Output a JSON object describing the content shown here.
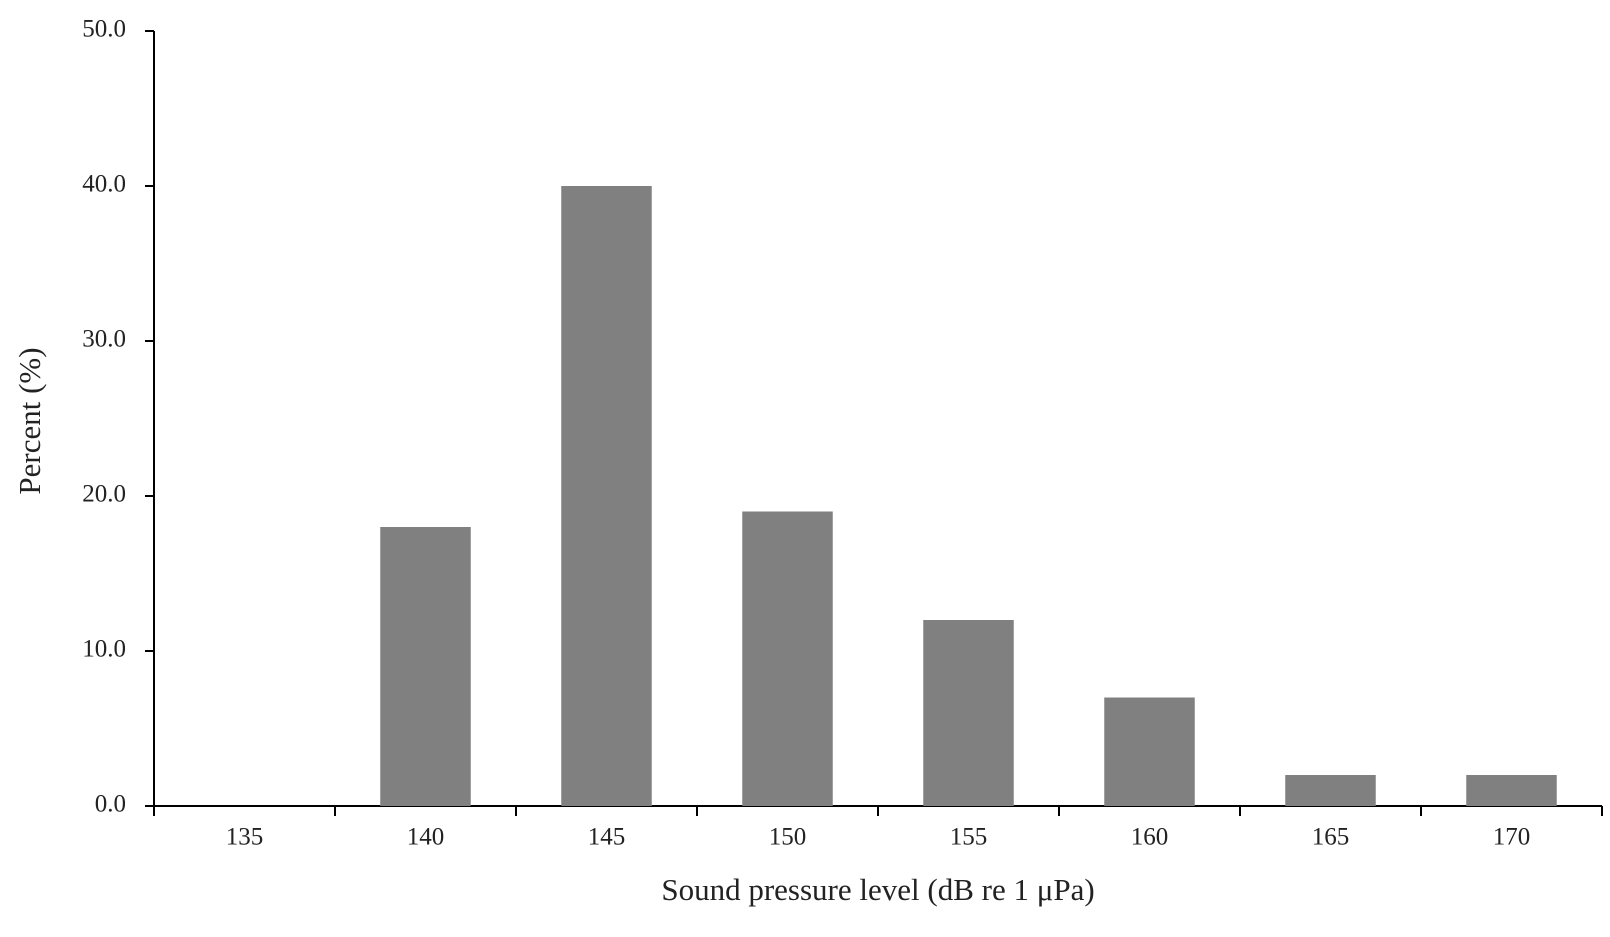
{
  "chart_data": {
    "type": "bar",
    "x_label": "Sound pressure level (dB re 1 μPa)",
    "y_label": "Percent (%)",
    "categories": [
      "135",
      "140",
      "145",
      "150",
      "155",
      "160",
      "165",
      "170"
    ],
    "values": [
      0,
      18,
      40,
      19,
      12,
      7,
      2,
      2
    ],
    "color": "#808080",
    "ylim": [
      0,
      50
    ],
    "yticks": [
      {
        "value": 0,
        "label": "0.0"
      },
      {
        "value": 10,
        "label": "10.0"
      },
      {
        "value": 20,
        "label": "20.0"
      },
      {
        "value": 30,
        "label": "30.0"
      },
      {
        "value": 40,
        "label": "40.0"
      },
      {
        "value": 50,
        "label": "50.0"
      }
    ],
    "grid": false
  }
}
